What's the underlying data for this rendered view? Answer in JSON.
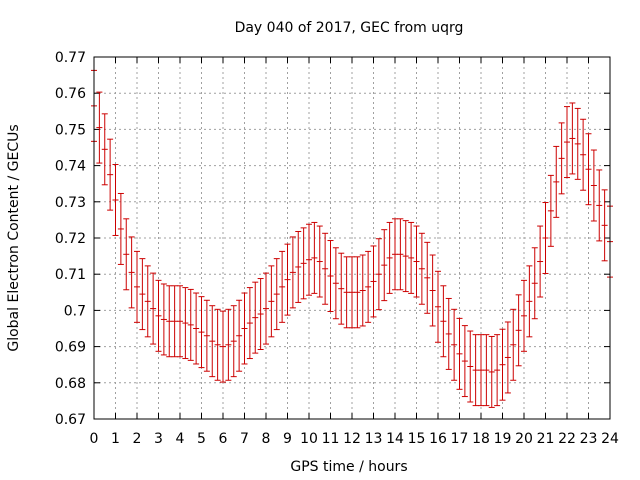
{
  "chart_data": {
    "type": "scatter",
    "title": "Day 040 of 2017, GEC from uqrg",
    "xlabel": "GPS time / hours",
    "ylabel": "Global Electron Content / GECUs",
    "xlim": [
      0,
      24
    ],
    "ylim": [
      0.67,
      0.77
    ],
    "xticks": [
      0,
      1,
      2,
      3,
      4,
      5,
      6,
      7,
      8,
      9,
      10,
      11,
      12,
      13,
      14,
      15,
      16,
      17,
      18,
      19,
      20,
      21,
      22,
      23,
      24
    ],
    "yticks": [
      "0.67",
      "0.68",
      "0.69",
      "0.7",
      "0.71",
      "0.72",
      "0.73",
      "0.74",
      "0.75",
      "0.76",
      "0.77"
    ],
    "grid": true,
    "error_bars": true,
    "series_color": "#cc0000",
    "series": [
      {
        "x": [
          0.0,
          0.25,
          0.5,
          0.75,
          1.0,
          1.25,
          1.5,
          1.75,
          2.0,
          2.25,
          2.5,
          2.75,
          3.0,
          3.25,
          3.5,
          3.75,
          4.0,
          4.25,
          4.5,
          4.75,
          5.0,
          5.25,
          5.5,
          5.75,
          6.0,
          6.25,
          6.5,
          6.75,
          7.0,
          7.25,
          7.5,
          7.75,
          8.0,
          8.25,
          8.5,
          8.75,
          9.0,
          9.25,
          9.5,
          9.75,
          10.0,
          10.25,
          10.5,
          10.75,
          11.0,
          11.25,
          11.5,
          11.75,
          12.0,
          12.25,
          12.5,
          12.75,
          13.0,
          13.25,
          13.5,
          13.75,
          14.0,
          14.25,
          14.5,
          14.75,
          15.0,
          15.25,
          15.5,
          15.75,
          16.0,
          16.25,
          16.5,
          16.75,
          17.0,
          17.25,
          17.5,
          17.75,
          18.0,
          18.25,
          18.5,
          18.75,
          19.0,
          19.25,
          19.5,
          19.75,
          20.0,
          20.25,
          20.5,
          20.75,
          21.0,
          21.25,
          21.5,
          21.75,
          22.0,
          22.25,
          22.5,
          22.75,
          23.0,
          23.25,
          23.5,
          23.75,
          24.0
        ],
        "y": [
          0.7565,
          0.7505,
          0.7445,
          0.7375,
          0.7305,
          0.7225,
          0.7155,
          0.7105,
          0.7065,
          0.7045,
          0.7025,
          0.7005,
          0.6985,
          0.6975,
          0.697,
          0.697,
          0.697,
          0.6965,
          0.696,
          0.695,
          0.694,
          0.693,
          0.6915,
          0.6905,
          0.69,
          0.6905,
          0.6915,
          0.693,
          0.695,
          0.6965,
          0.698,
          0.699,
          0.7005,
          0.7025,
          0.7045,
          0.7065,
          0.7085,
          0.7105,
          0.712,
          0.713,
          0.714,
          0.7145,
          0.7135,
          0.7115,
          0.7095,
          0.7075,
          0.706,
          0.705,
          0.705,
          0.705,
          0.7055,
          0.7065,
          0.708,
          0.71,
          0.7125,
          0.7145,
          0.7155,
          0.7155,
          0.715,
          0.7145,
          0.7135,
          0.7115,
          0.709,
          0.7055,
          0.701,
          0.697,
          0.6935,
          0.6905,
          0.688,
          0.686,
          0.6845,
          0.6835,
          0.6835,
          0.6835,
          0.683,
          0.6835,
          0.685,
          0.687,
          0.6905,
          0.6945,
          0.6985,
          0.7025,
          0.7075,
          0.7135,
          0.72,
          0.7275,
          0.7355,
          0.742,
          0.7465,
          0.7475,
          0.746,
          0.743,
          0.739,
          0.7345,
          0.729,
          0.7235,
          0.719
        ],
        "err": [
          0.0098,
          0.0098,
          0.0098,
          0.0098,
          0.0098,
          0.0098,
          0.0098,
          0.0098,
          0.0098,
          0.0098,
          0.0098,
          0.0098,
          0.0098,
          0.0098,
          0.0098,
          0.0098,
          0.0098,
          0.0098,
          0.0098,
          0.0098,
          0.0098,
          0.0098,
          0.0098,
          0.0098,
          0.0098,
          0.0098,
          0.0098,
          0.0098,
          0.0098,
          0.0098,
          0.0098,
          0.0098,
          0.0098,
          0.0098,
          0.0098,
          0.0098,
          0.0098,
          0.0098,
          0.0098,
          0.0098,
          0.0098,
          0.0098,
          0.0098,
          0.0098,
          0.0098,
          0.0098,
          0.0098,
          0.0098,
          0.0098,
          0.0098,
          0.0098,
          0.0098,
          0.0098,
          0.0098,
          0.0098,
          0.0098,
          0.0098,
          0.0098,
          0.0098,
          0.0098,
          0.0098,
          0.0098,
          0.0098,
          0.0098,
          0.0098,
          0.0098,
          0.0098,
          0.0098,
          0.0098,
          0.0098,
          0.0098,
          0.0098,
          0.0098,
          0.0098,
          0.0098,
          0.0098,
          0.0098,
          0.0098,
          0.0098,
          0.0098,
          0.0098,
          0.0098,
          0.0098,
          0.0098,
          0.0098,
          0.0098,
          0.0098,
          0.0098,
          0.0098,
          0.0098,
          0.0098,
          0.0098,
          0.0098,
          0.0098,
          0.0098,
          0.0098,
          0.0098
        ]
      }
    ]
  }
}
